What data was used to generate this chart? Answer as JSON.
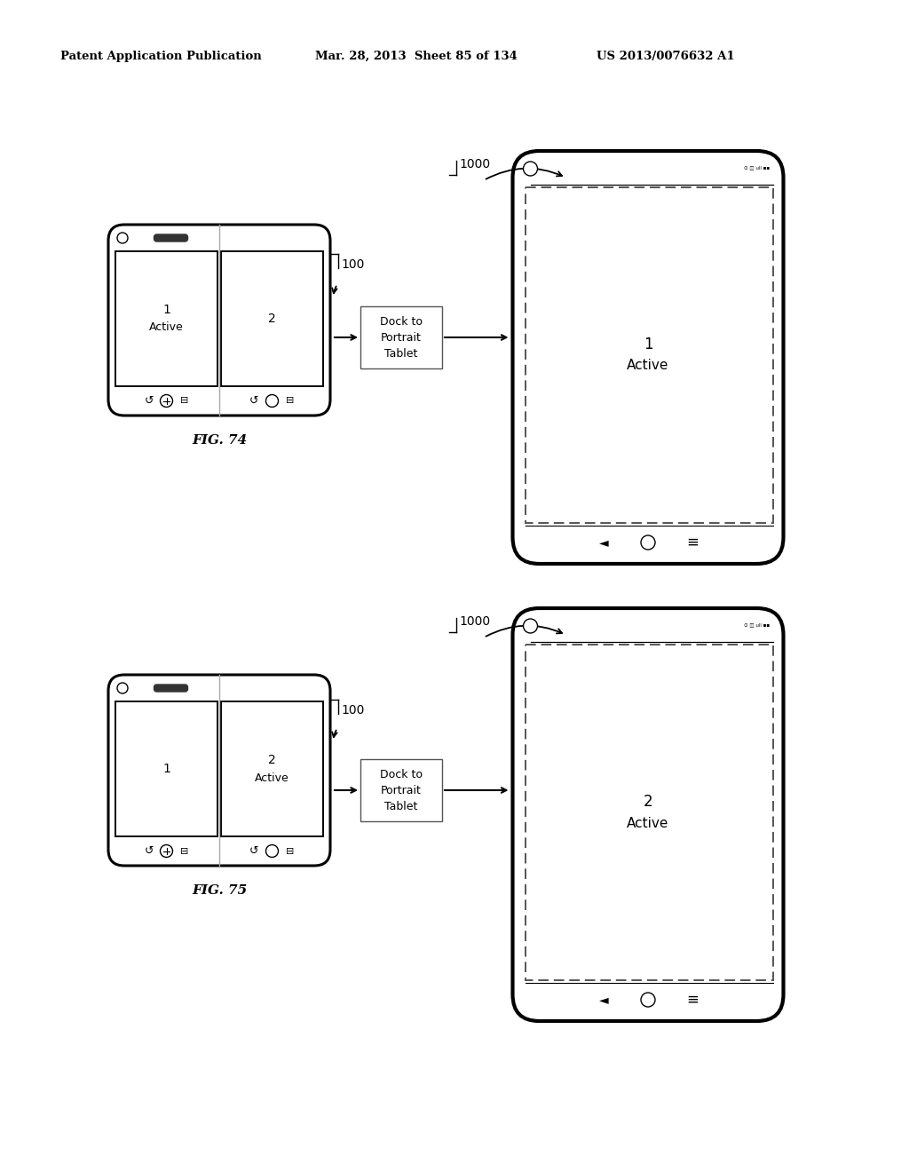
{
  "bg_color": "#ffffff",
  "header_left": "Patent Application Publication",
  "header_mid": "Mar. 28, 2013  Sheet 85 of 134",
  "header_right": "US 2013/0076632 A1",
  "fig74_label": "FIG. 74",
  "fig75_label": "FIG. 75",
  "dock_label": "Dock to\nPortrait\nTablet",
  "label_1000": "1000",
  "label_100": "100",
  "top_phone_left_num": "1",
  "top_phone_left_sub": "Active",
  "top_phone_right_num": "2",
  "top_tablet_num": "1",
  "top_tablet_sub": "Active",
  "bot_phone_left_num": "1",
  "bot_phone_right_num": "2",
  "bot_phone_right_sub": "Active",
  "bot_tablet_num": "2",
  "bot_tablet_sub": "Active"
}
